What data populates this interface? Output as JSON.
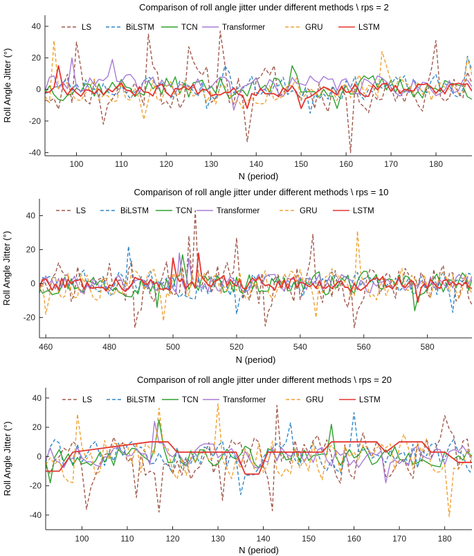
{
  "figure": "roll angle jitter comparison",
  "chart_data": [
    {
      "type": "line",
      "title": "Comparison of roll angle jitter under different methods \\ rps = 2",
      "xlabel": "N (period)",
      "ylabel": "Roll Angle Jitter (°)",
      "xlim": [
        93,
        188
      ],
      "ylim": [
        -42,
        47
      ],
      "xticks": [
        100,
        110,
        120,
        130,
        140,
        150,
        160,
        170,
        180
      ],
      "yticks": [
        -40,
        -20,
        0,
        20,
        40
      ],
      "legend": [
        "LS",
        "BiLSTM",
        "TCN",
        "Transformer",
        "GRU",
        "LSTM"
      ],
      "series": [
        {
          "name": "LS",
          "amp": 13,
          "seed": 11,
          "spikes": [
            [
              100,
              30
            ],
            [
              116,
              35
            ],
            [
              132,
              37
            ],
            [
              138,
              -33
            ],
            [
              161,
              -40
            ],
            [
              180,
              31
            ],
            [
              106,
              -22
            ],
            [
              125,
              27
            ],
            [
              144,
              15
            ]
          ],
          "bias": 0
        },
        {
          "name": "BiLSTM",
          "amp": 7,
          "seed": 23,
          "spikes": [
            [
              129,
              -12
            ],
            [
              152,
              -15
            ],
            [
              133,
              15
            ],
            [
              187,
              21
            ]
          ],
          "bias": 1
        },
        {
          "name": "TCN",
          "amp": 7,
          "seed": 37,
          "spikes": [
            [
              148,
              15
            ],
            [
              158,
              -12
            ]
          ],
          "bias": 1
        },
        {
          "name": "Transformer",
          "amp": 6,
          "seed": 41,
          "spikes": [
            [
              99,
              20
            ],
            [
              108,
              19
            ],
            [
              135,
              -13
            ]
          ],
          "bias": 2
        },
        {
          "name": "GRU",
          "amp": 9,
          "seed": 53,
          "spikes": [
            [
              95,
              31
            ],
            [
              115,
              -19
            ],
            [
              168,
              24
            ],
            [
              187,
              20
            ],
            [
              137,
              -12
            ]
          ],
          "bias": 0
        },
        {
          "name": "LSTM",
          "amp": 4,
          "seed": 67,
          "spikes": [
            [
              96,
              15
            ],
            [
              138,
              -12
            ],
            [
              150,
              -12
            ]
          ],
          "bias": 0
        }
      ]
    },
    {
      "type": "line",
      "title": "Comparison of roll angle jitter under different methods \\ rps = 10",
      "xlabel": "N (period)",
      "ylabel": "Roll Angle Jitter (°)",
      "xlim": [
        458,
        594
      ],
      "ylim": [
        -32,
        50
      ],
      "xticks": [
        460,
        480,
        500,
        520,
        540,
        560,
        580
      ],
      "yticks": [
        -20,
        0,
        20,
        40
      ],
      "legend": [
        "LS",
        "BiLSTM",
        "TCN",
        "Transformer",
        "GRU",
        "LSTM"
      ],
      "series": [
        {
          "name": "LS",
          "amp": 12,
          "seed": 71,
          "spikes": [
            [
              507,
              43
            ],
            [
              488,
              -26
            ],
            [
              505,
              28
            ],
            [
              529,
              -25
            ],
            [
              544,
              29
            ],
            [
              557,
              -26
            ],
            [
              520,
              27
            ]
          ],
          "bias": 0
        },
        {
          "name": "BiLSTM",
          "amp": 7,
          "seed": 83,
          "spikes": [
            [
              486,
              22
            ],
            [
              520,
              -18
            ],
            [
              588,
              -17
            ]
          ],
          "bias": 0
        },
        {
          "name": "TCN",
          "amp": 6,
          "seed": 97,
          "spikes": [
            [
              503,
              17
            ],
            [
              495,
              -14
            ],
            [
              576,
              -16
            ]
          ],
          "bias": 0
        },
        {
          "name": "Transformer",
          "amp": 5,
          "seed": 101,
          "spikes": [
            [
              502,
              18
            ],
            [
              505,
              15
            ]
          ],
          "bias": 0
        },
        {
          "name": "GRU",
          "amp": 8,
          "seed": 113,
          "spikes": [
            [
              558,
              31
            ],
            [
              460,
              -18
            ],
            [
              497,
              -22
            ],
            [
              545,
              -20
            ]
          ],
          "bias": 0
        },
        {
          "name": "LSTM",
          "amp": 4,
          "seed": 127,
          "spikes": [
            [
              508,
              18
            ],
            [
              500,
              15
            ],
            [
              577,
              -11
            ]
          ],
          "bias": 0
        }
      ]
    },
    {
      "type": "line",
      "title": "Comparison of roll angle jitter under different methods \\ rps = 20",
      "xlabel": "N (period)",
      "ylabel": "Roll Angle Jitter (°)",
      "xlim": [
        92,
        186
      ],
      "ylim": [
        -50,
        47
      ],
      "xticks": [
        100,
        110,
        120,
        130,
        140,
        150,
        160,
        170,
        180
      ],
      "yticks": [
        -40,
        -20,
        0,
        20,
        40
      ],
      "legend": [
        "LS",
        "BiLSTM",
        "TCN",
        "Transformer",
        "GRU",
        "LSTM"
      ],
      "series": [
        {
          "name": "LS",
          "amp": 15,
          "seed": 131,
          "spikes": [
            [
              117,
              -38
            ],
            [
              101,
              -36
            ],
            [
              143,
              35
            ],
            [
              131,
              -30
            ],
            [
              142,
              -37
            ],
            [
              180,
              28
            ],
            [
              112,
              -28
            ]
          ],
          "bias": 0
        },
        {
          "name": "BiLSTM",
          "amp": 10,
          "seed": 139,
          "spikes": [
            [
              160,
              30
            ],
            [
              146,
              23
            ],
            [
              135,
              -26
            ]
          ],
          "bias": 0
        },
        {
          "name": "TCN",
          "amp": 7,
          "seed": 149,
          "spikes": [
            [
              117,
              25
            ],
            [
              93,
              -18
            ],
            [
              155,
              22
            ]
          ],
          "bias": 0
        },
        {
          "name": "Transformer",
          "amp": 7,
          "seed": 151,
          "spikes": [
            [
              116,
              24
            ],
            [
              167,
              -18
            ]
          ],
          "bias": 0
        },
        {
          "name": "GRU",
          "amp": 14,
          "seed": 157,
          "spikes": [
            [
              130,
              36
            ],
            [
              181,
              -41
            ],
            [
              117,
              33
            ],
            [
              99,
              29
            ]
          ],
          "bias": 0
        },
        {
          "name": "LSTM",
          "amp": 2.5,
          "seed": 163,
          "spikes": [],
          "steps": [
            [
              92,
              -10
            ],
            [
              95,
              -10
            ],
            [
              98,
              3
            ],
            [
              115,
              10
            ],
            [
              119,
              10
            ],
            [
              121,
              3
            ],
            [
              134,
              3
            ],
            [
              136,
              -12
            ],
            [
              139,
              -12
            ],
            [
              141,
              3
            ],
            [
              153,
              3
            ],
            [
              155,
              10
            ],
            [
              165,
              10
            ],
            [
              167,
              3
            ],
            [
              170,
              10
            ],
            [
              175,
              10
            ],
            [
              177,
              3
            ],
            [
              180,
              3
            ],
            [
              183,
              -4
            ],
            [
              186,
              -4
            ]
          ],
          "bias": 0
        }
      ]
    }
  ],
  "styles": {
    "LS": {
      "color": "#a0584a",
      "dash": "5,3"
    },
    "BiLSTM": {
      "color": "#2f86c7",
      "dash": "5,3"
    },
    "TCN": {
      "color": "#2ca02c",
      "dash": ""
    },
    "Transformer": {
      "color": "#a77bd6",
      "dash": ""
    },
    "GRU": {
      "color": "#f0a030",
      "dash": "5,3"
    },
    "LSTM": {
      "color": "#e3352f",
      "dash": ""
    }
  }
}
